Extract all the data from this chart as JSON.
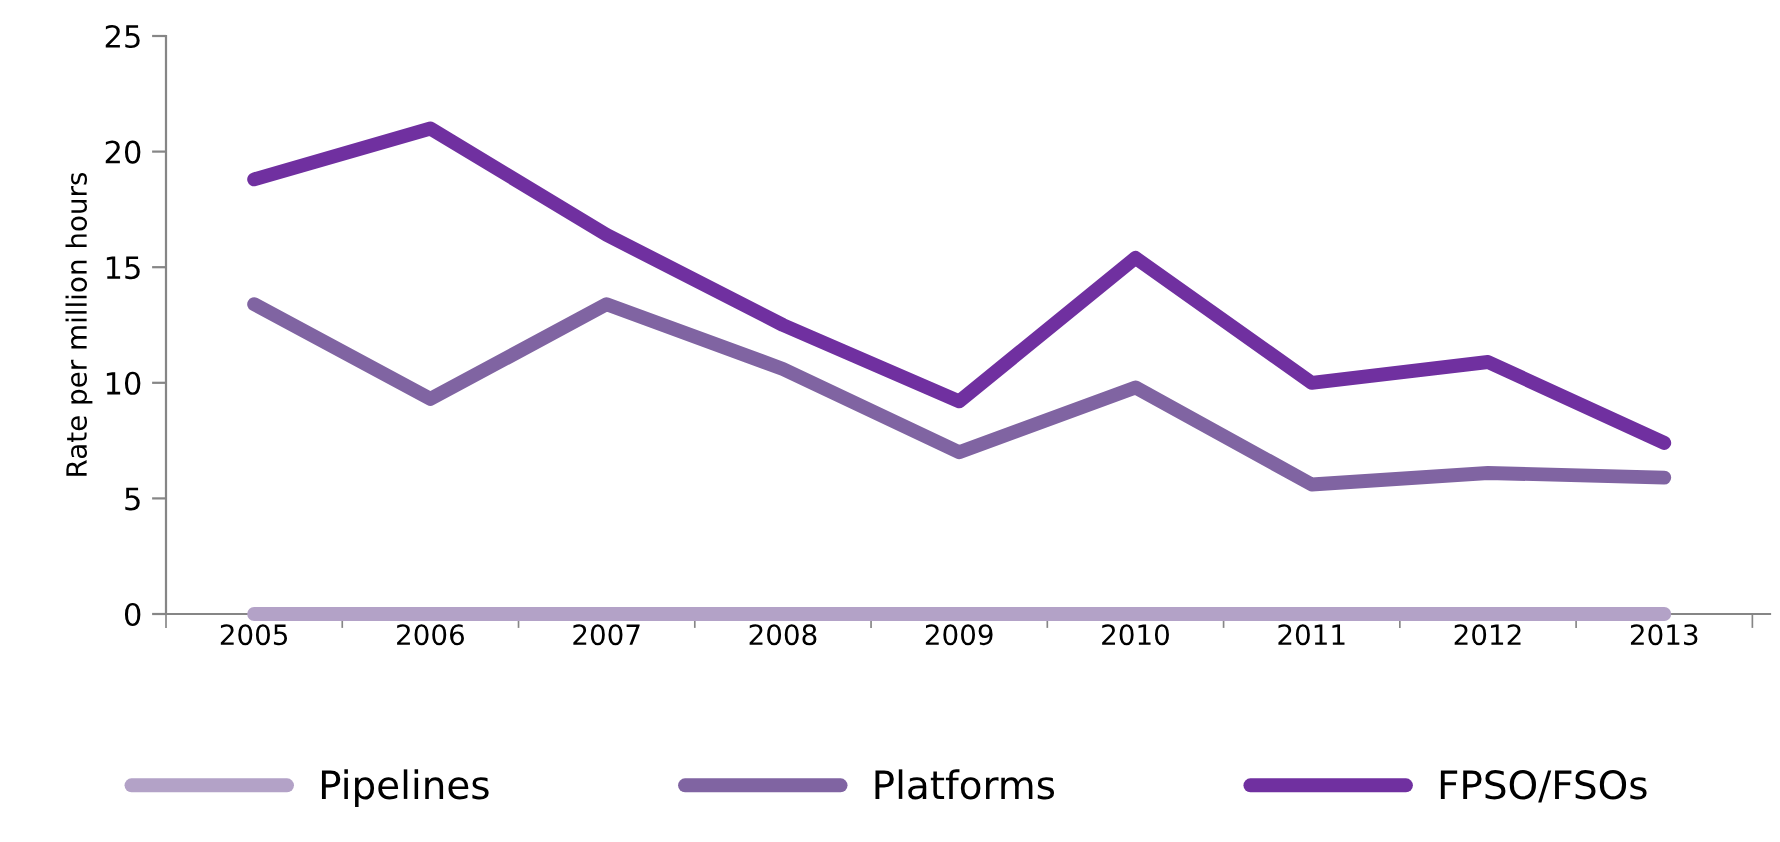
{
  "chart_data": {
    "type": "line",
    "ylabel": "Rate per million hours",
    "categories": [
      "2005",
      "2006",
      "2007",
      "2008",
      "2009",
      "2010",
      "2011",
      "2012",
      "2013"
    ],
    "series": [
      {
        "name": "Pipelines",
        "color": "#b3a2c7",
        "values": [
          0,
          0,
          0,
          0,
          0,
          0,
          0,
          0,
          0
        ]
      },
      {
        "name": "Platforms",
        "color": "#8064a2",
        "values": [
          13.4,
          9.3,
          13.4,
          10.6,
          7.0,
          9.8,
          5.6,
          6.1,
          5.9
        ]
      },
      {
        "name": "FPSO/FSOs",
        "color": "#7030a0",
        "values": [
          18.8,
          21.0,
          16.4,
          12.5,
          9.2,
          15.4,
          10.0,
          10.9,
          7.4
        ]
      }
    ],
    "ylim": [
      0,
      25
    ],
    "yticks": [
      0,
      5,
      10,
      15,
      20,
      25
    ],
    "grid": false,
    "legend": "bottom",
    "marker": "none",
    "line_style": "solid"
  }
}
